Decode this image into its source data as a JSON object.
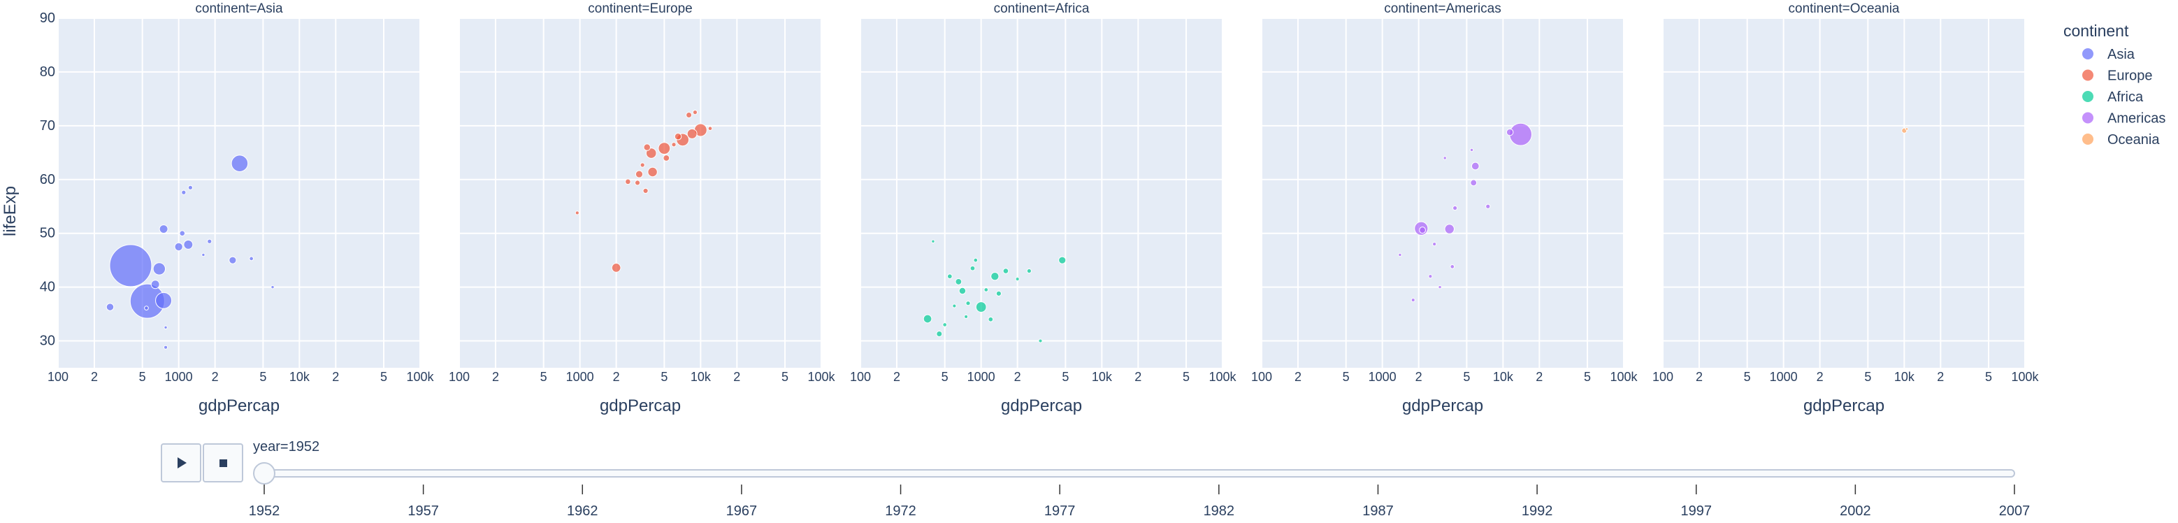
{
  "colors": {
    "Asia": "#636efa",
    "Europe": "#EF553B",
    "Africa": "#00cc96",
    "Americas": "#ab63fa",
    "Oceania": "#FFA15A"
  },
  "legend": {
    "title": "continent",
    "items": [
      "Asia",
      "Europe",
      "Africa",
      "Americas",
      "Oceania"
    ]
  },
  "slider": {
    "current_label": "year=1952",
    "years": [
      "1952",
      "1957",
      "1962",
      "1967",
      "1972",
      "1977",
      "1982",
      "1987",
      "1992",
      "1997",
      "2002",
      "2007"
    ],
    "selected_index": 0
  },
  "controls": {
    "play_icon": "play-icon",
    "stop_icon": "stop-icon"
  },
  "chart_data": {
    "type": "scatter",
    "bubble": true,
    "facet_column": "continent",
    "facets": [
      {
        "title": "continent=Asia",
        "continent": "Asia"
      },
      {
        "title": "continent=Europe",
        "continent": "Europe"
      },
      {
        "title": "continent=Africa",
        "continent": "Africa"
      },
      {
        "title": "continent=Americas",
        "continent": "Americas"
      },
      {
        "title": "continent=Oceania",
        "continent": "Oceania"
      }
    ],
    "xlabel": "gdpPercap",
    "ylabel": "lifeExp",
    "x_scale": "log",
    "xlim": [
      100,
      100000
    ],
    "ylim": [
      25,
      90
    ],
    "x_ticks": [
      {
        "v": 100,
        "label": "100"
      },
      {
        "v": 200,
        "label": "2"
      },
      {
        "v": 500,
        "label": "5"
      },
      {
        "v": 1000,
        "label": "1000"
      },
      {
        "v": 2000,
        "label": "2"
      },
      {
        "v": 5000,
        "label": "5"
      },
      {
        "v": 10000,
        "label": "10k"
      },
      {
        "v": 20000,
        "label": "2"
      },
      {
        "v": 50000,
        "label": "5"
      },
      {
        "v": 100000,
        "label": "100k"
      }
    ],
    "y_ticks": [
      30,
      40,
      50,
      60,
      70,
      80,
      90
    ],
    "grid": true,
    "legend_position": "right",
    "size_field": "pop",
    "points": [
      {
        "c": "Asia",
        "x": 400,
        "y": 44,
        "s": 556
      },
      {
        "c": "Asia",
        "x": 550,
        "y": 37.4,
        "s": 372
      },
      {
        "c": "Asia",
        "x": 750,
        "y": 37.5,
        "s": 82
      },
      {
        "c": "Asia",
        "x": 3200,
        "y": 63,
        "s": 86
      },
      {
        "c": "Asia",
        "x": 640,
        "y": 40.5,
        "s": 22
      },
      {
        "c": "Asia",
        "x": 690,
        "y": 43.4,
        "s": 47
      },
      {
        "c": "Asia",
        "x": 750,
        "y": 50.8,
        "s": 22
      },
      {
        "c": "Asia",
        "x": 270,
        "y": 36.3,
        "s": 17
      },
      {
        "c": "Asia",
        "x": 1000,
        "y": 47.5,
        "s": 20
      },
      {
        "c": "Asia",
        "x": 1200,
        "y": 47.9,
        "s": 26
      },
      {
        "c": "Asia",
        "x": 2800,
        "y": 45,
        "s": 16
      },
      {
        "c": "Asia",
        "x": 1070,
        "y": 50,
        "s": 9
      },
      {
        "c": "Asia",
        "x": 1100,
        "y": 57.6,
        "s": 6
      },
      {
        "c": "Asia",
        "x": 1250,
        "y": 58.5,
        "s": 6
      },
      {
        "c": "Asia",
        "x": 1800,
        "y": 48.5,
        "s": 6
      },
      {
        "c": "Asia",
        "x": 4000,
        "y": 45.3,
        "s": 5
      },
      {
        "c": "Asia",
        "x": 780,
        "y": 28.8,
        "s": 4
      },
      {
        "c": "Asia",
        "x": 780,
        "y": 32.5,
        "s": 3
      },
      {
        "c": "Asia",
        "x": 6000,
        "y": 40,
        "s": 3
      },
      {
        "c": "Asia",
        "x": 1600,
        "y": 46,
        "s": 3
      },
      {
        "c": "Asia",
        "x": 540,
        "y": 36.1,
        "s": 5
      },
      {
        "c": "Europe",
        "x": 10000,
        "y": 69.2,
        "s": 50
      },
      {
        "c": "Europe",
        "x": 7100,
        "y": 67.4,
        "s": 49
      },
      {
        "c": "Europe",
        "x": 8500,
        "y": 68.5,
        "s": 30
      },
      {
        "c": "Europe",
        "x": 5000,
        "y": 65.8,
        "s": 44
      },
      {
        "c": "Europe",
        "x": 3900,
        "y": 64.9,
        "s": 33
      },
      {
        "c": "Europe",
        "x": 4000,
        "y": 61.4,
        "s": 28
      },
      {
        "c": "Europe",
        "x": 2000,
        "y": 43.6,
        "s": 25
      },
      {
        "c": "Europe",
        "x": 3100,
        "y": 61,
        "s": 16
      },
      {
        "c": "Europe",
        "x": 3600,
        "y": 66,
        "s": 14
      },
      {
        "c": "Europe",
        "x": 5200,
        "y": 64,
        "s": 12
      },
      {
        "c": "Europe",
        "x": 8000,
        "y": 72,
        "s": 10
      },
      {
        "c": "Europe",
        "x": 6500,
        "y": 68,
        "s": 14
      },
      {
        "c": "Europe",
        "x": 2500,
        "y": 59.6,
        "s": 9
      },
      {
        "c": "Europe",
        "x": 3000,
        "y": 59.4,
        "s": 8
      },
      {
        "c": "Europe",
        "x": 3500,
        "y": 57.9,
        "s": 8
      },
      {
        "c": "Europe",
        "x": 9000,
        "y": 72.5,
        "s": 6
      },
      {
        "c": "Europe",
        "x": 12000,
        "y": 69.5,
        "s": 5
      },
      {
        "c": "Europe",
        "x": 950,
        "y": 53.8,
        "s": 4
      },
      {
        "c": "Europe",
        "x": 3300,
        "y": 62.7,
        "s": 6
      },
      {
        "c": "Europe",
        "x": 6000,
        "y": 66.5,
        "s": 6
      },
      {
        "c": "Africa",
        "x": 1000,
        "y": 36.3,
        "s": 34
      },
      {
        "c": "Africa",
        "x": 1300,
        "y": 42,
        "s": 20
      },
      {
        "c": "Africa",
        "x": 4700,
        "y": 45,
        "s": 16
      },
      {
        "c": "Africa",
        "x": 360,
        "y": 34.1,
        "s": 21
      },
      {
        "c": "Africa",
        "x": 700,
        "y": 39.3,
        "s": 14
      },
      {
        "c": "Africa",
        "x": 650,
        "y": 41,
        "s": 12
      },
      {
        "c": "Africa",
        "x": 450,
        "y": 31.3,
        "s": 10
      },
      {
        "c": "Africa",
        "x": 1600,
        "y": 43,
        "s": 9
      },
      {
        "c": "Africa",
        "x": 1400,
        "y": 38.8,
        "s": 8
      },
      {
        "c": "Africa",
        "x": 850,
        "y": 43.5,
        "s": 7
      },
      {
        "c": "Africa",
        "x": 550,
        "y": 42,
        "s": 7
      },
      {
        "c": "Africa",
        "x": 1200,
        "y": 34,
        "s": 7
      },
      {
        "c": "Africa",
        "x": 780,
        "y": 37,
        "s": 6
      },
      {
        "c": "Africa",
        "x": 2500,
        "y": 43,
        "s": 6
      },
      {
        "c": "Africa",
        "x": 3100,
        "y": 30,
        "s": 4
      },
      {
        "c": "Africa",
        "x": 500,
        "y": 33,
        "s": 5
      },
      {
        "c": "Africa",
        "x": 900,
        "y": 45,
        "s": 5
      },
      {
        "c": "Africa",
        "x": 600,
        "y": 36.5,
        "s": 4
      },
      {
        "c": "Africa",
        "x": 1100,
        "y": 39.5,
        "s": 5
      },
      {
        "c": "Africa",
        "x": 2000,
        "y": 41.5,
        "s": 4
      },
      {
        "c": "Africa",
        "x": 400,
        "y": 48.5,
        "s": 3
      },
      {
        "c": "Africa",
        "x": 750,
        "y": 34.5,
        "s": 4
      },
      {
        "c": "Americas",
        "x": 14000,
        "y": 68.4,
        "s": 157
      },
      {
        "c": "Americas",
        "x": 2100,
        "y": 50.9,
        "s": 57
      },
      {
        "c": "Americas",
        "x": 3600,
        "y": 50.8,
        "s": 28
      },
      {
        "c": "Americas",
        "x": 5900,
        "y": 62.5,
        "s": 18
      },
      {
        "c": "Americas",
        "x": 11400,
        "y": 68.8,
        "s": 14
      },
      {
        "c": "Americas",
        "x": 5700,
        "y": 59.4,
        "s": 12
      },
      {
        "c": "Americas",
        "x": 2150,
        "y": 50.6,
        "s": 12
      },
      {
        "c": "Americas",
        "x": 4000,
        "y": 54.7,
        "s": 6
      },
      {
        "c": "Americas",
        "x": 7500,
        "y": 55,
        "s": 6
      },
      {
        "c": "Americas",
        "x": 3800,
        "y": 43.8,
        "s": 5
      },
      {
        "c": "Americas",
        "x": 2500,
        "y": 42,
        "s": 4
      },
      {
        "c": "Americas",
        "x": 1800,
        "y": 37.6,
        "s": 4
      },
      {
        "c": "Americas",
        "x": 2700,
        "y": 48,
        "s": 4
      },
      {
        "c": "Americas",
        "x": 3000,
        "y": 40,
        "s": 3
      },
      {
        "c": "Americas",
        "x": 1400,
        "y": 46,
        "s": 3
      },
      {
        "c": "Americas",
        "x": 5500,
        "y": 65.5,
        "s": 3
      },
      {
        "c": "Americas",
        "x": 3300,
        "y": 64,
        "s": 3
      },
      {
        "c": "Oceania",
        "x": 10000,
        "y": 69.1,
        "s": 8
      },
      {
        "c": "Oceania",
        "x": 10500,
        "y": 69.4,
        "s": 2
      }
    ]
  }
}
